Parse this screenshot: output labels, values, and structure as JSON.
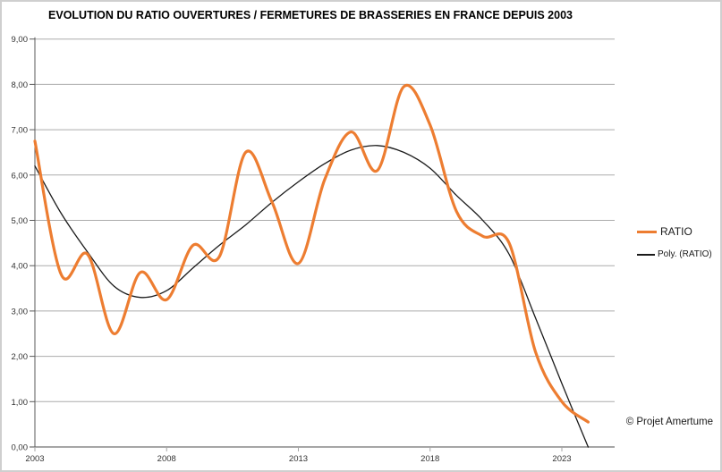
{
  "title": "EVOLUTION DU RATIO OUVERTURES / FERMETURES DE BRASSERIES EN FRANCE DEPUIS 2003",
  "credit": "© Projet Amertume",
  "legend": {
    "ratio_label": "RATIO",
    "poly_label": "Poly. (RATIO)"
  },
  "colors": {
    "ratio": "#ED7D31",
    "poly": "#1A1A1A",
    "grid": "#ABABAB",
    "x_axis": "#A6A6A6",
    "y_axis": "#595959",
    "tick_text": "#333333"
  },
  "chart_data": {
    "type": "line",
    "title": "EVOLUTION DU RATIO OUVERTURES / FERMETURES DE BRASSERIES EN FRANCE DEPUIS 2003",
    "x": [
      2003,
      2004,
      2005,
      2006,
      2007,
      2008,
      2009,
      2010,
      2011,
      2012,
      2013,
      2014,
      2015,
      2016,
      2017,
      2018,
      2019,
      2020,
      2021,
      2022,
      2023,
      2024
    ],
    "series": [
      {
        "name": "RATIO",
        "color": "#ED7D31",
        "width": 3.2,
        "smooth": true,
        "values": [
          6.75,
          3.8,
          4.25,
          2.5,
          3.85,
          3.25,
          4.45,
          4.2,
          6.5,
          5.4,
          4.05,
          5.9,
          6.95,
          6.1,
          7.95,
          7.1,
          5.2,
          4.65,
          4.5,
          2.1,
          1.0,
          0.55
        ]
      },
      {
        "name": "Poly. (RATIO)",
        "color": "#1A1A1A",
        "width": 1.3,
        "smooth": true,
        "values": [
          6.2,
          5.15,
          4.3,
          3.55,
          3.3,
          3.45,
          3.95,
          4.45,
          4.9,
          5.4,
          5.85,
          6.25,
          6.55,
          6.65,
          6.5,
          6.15,
          5.55,
          5.0,
          4.25,
          2.85,
          1.4,
          0.0
        ]
      }
    ],
    "ylim": [
      0,
      9
    ],
    "xlim": [
      2003,
      2025
    ],
    "ytick_labels": [
      "0,00",
      "1,00",
      "2,00",
      "3,00",
      "4,00",
      "5,00",
      "6,00",
      "7,00",
      "8,00",
      "9,00"
    ],
    "xticks": [
      2003,
      2008,
      2013,
      2018,
      2023
    ],
    "grid": "horizontal",
    "legend_position": "right"
  }
}
